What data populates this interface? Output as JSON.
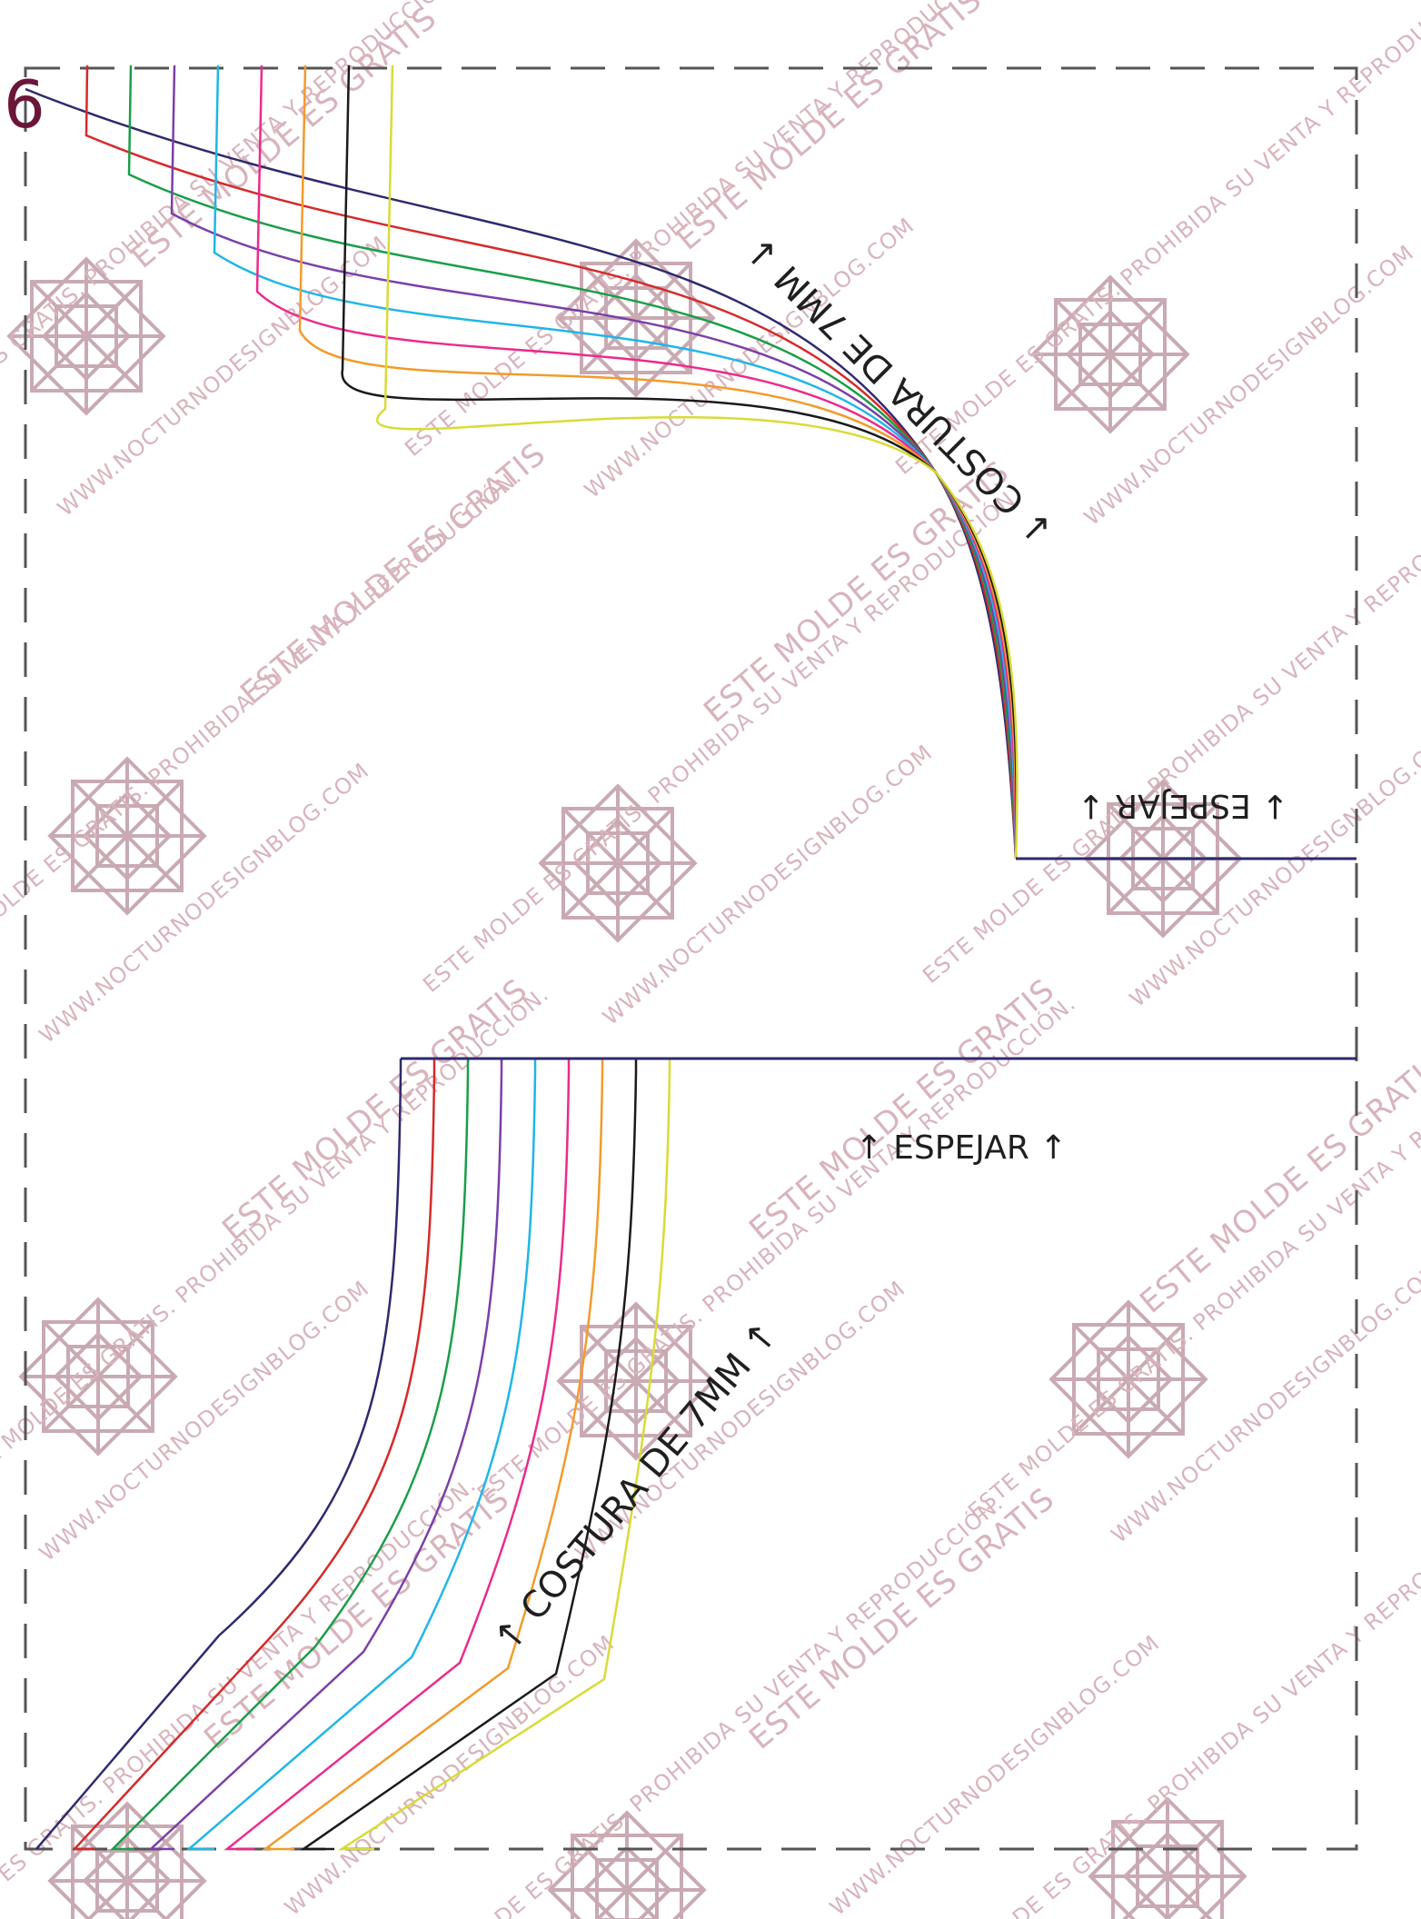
{
  "page": {
    "page_number": "6",
    "background": "#ffffff"
  },
  "labels": {
    "seam_label": "↓ COSTURA DE 7MM ↓",
    "seam_label_bottom": "↑ COSTURA DE 7MM ↑",
    "mirror_top": "↓ ESPEJAR ↓",
    "mirror_bottom": "↑ ESPEJAR ↑"
  },
  "watermarks": {
    "phrase_main": "ESTE MOLDE ES GRATIS",
    "phrase_long": "WWW.NOCTURNODESIGNBLOG.COM",
    "phrase_rights": "ESTE MOLDE ES GRATIS. PROHIBIDA SU VENTA Y REPRODUCCIÓN.",
    "color": "#d8b4bd",
    "logo_color": "#c9aab3"
  },
  "style": {
    "border_color": "#555555",
    "size_colors": [
      "#2e2a6e",
      "#d62a2a",
      "#1a9e48",
      "#7b3fa8",
      "#1fb6e8",
      "#ec2a8c",
      "#f39a2b",
      "#1a1a1a",
      "#d8db36"
    ],
    "outline_color": "#2e2a6e"
  }
}
